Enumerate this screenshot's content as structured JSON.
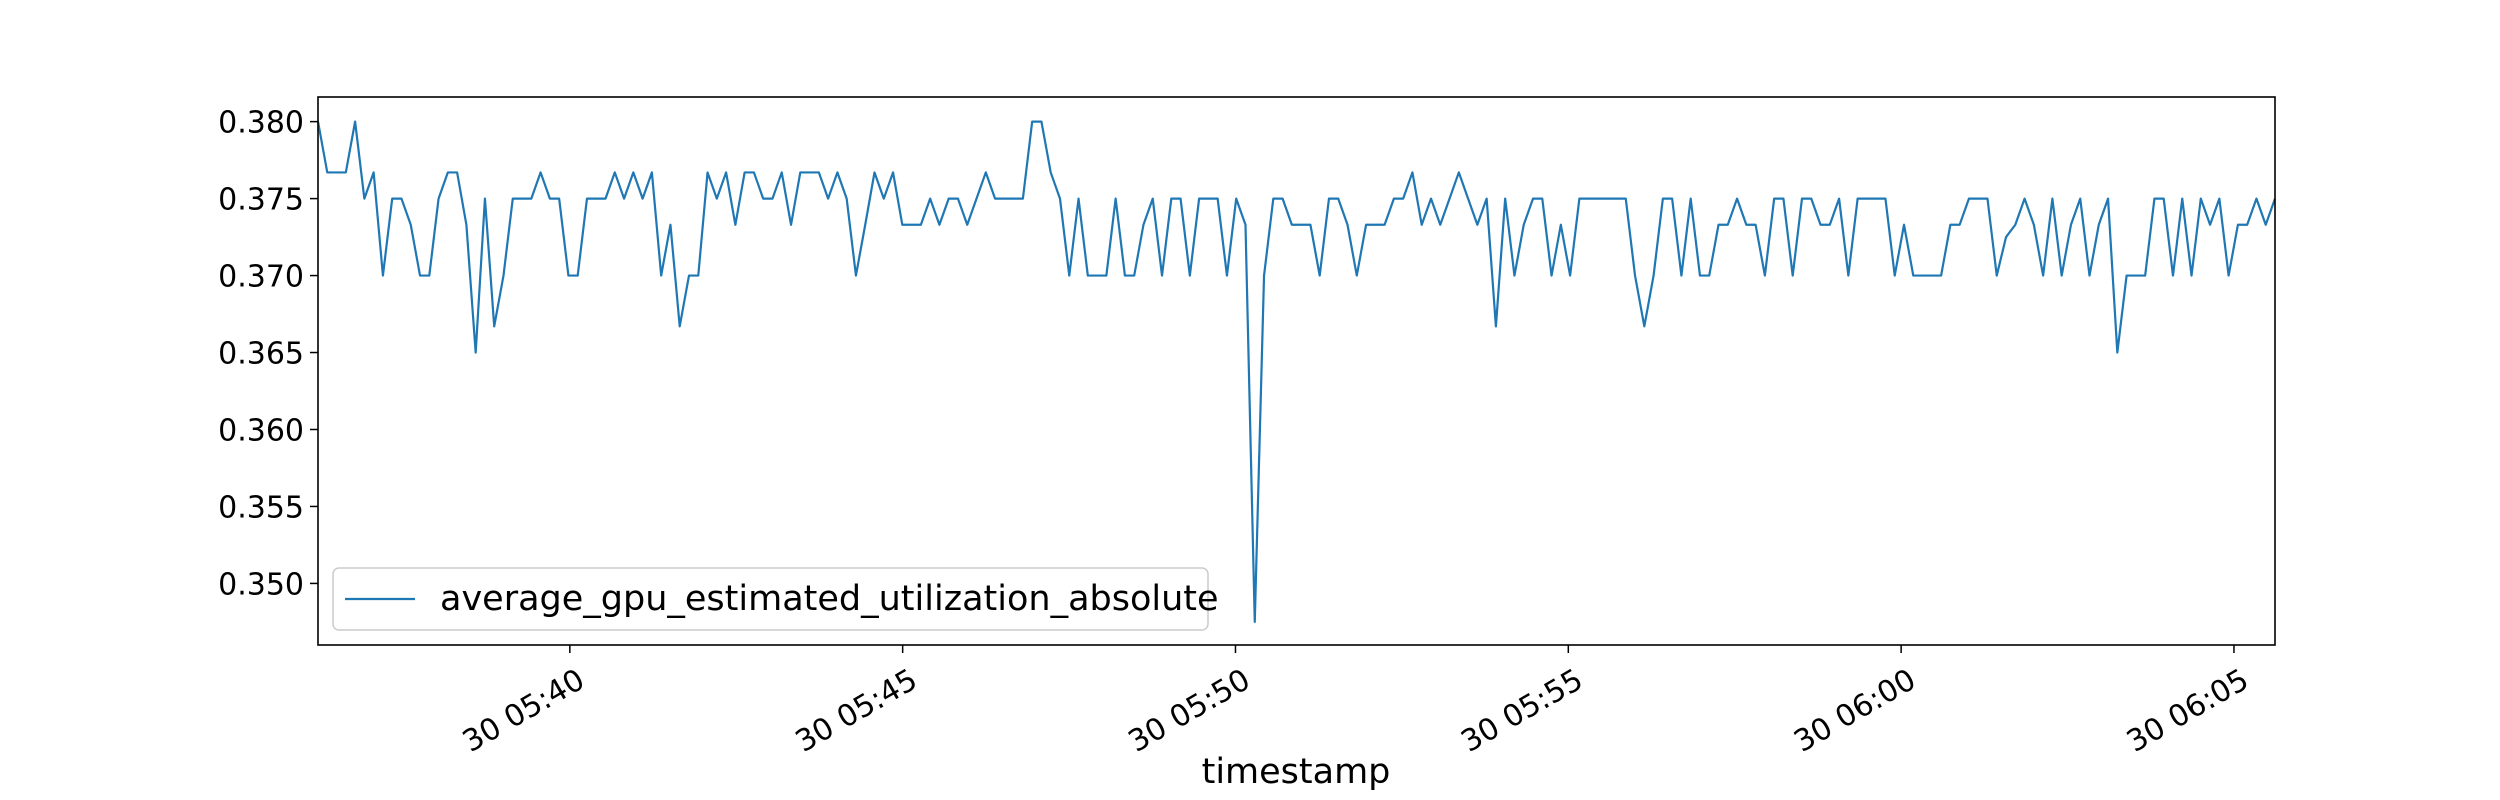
{
  "chart_data": {
    "type": "line",
    "title": "",
    "xlabel": "timestamp",
    "ylabel": "",
    "grid": false,
    "legend_position": "lower-left",
    "x_start": "30 05:36:13",
    "x_end": "30 06:05:37",
    "xlim": [
      "30 05:36:13",
      "30 06:05:37"
    ],
    "ylim": [
      0.346,
      0.3816
    ],
    "x_tick_labels": [
      "30 05:40",
      "30 05:45",
      "30 05:50",
      "30 05:55",
      "30 06:00",
      "30 06:05"
    ],
    "y_tick_labels": [
      "0.350",
      "0.355",
      "0.360",
      "0.365",
      "0.370",
      "0.375",
      "0.380"
    ],
    "x_sample_interval": "6 seconds",
    "series": [
      {
        "name": "average_gpu_estimated_utilization_absolute",
        "color": "#1f77b4",
        "values": [
          0.38,
          0.3767,
          0.3767,
          0.3767,
          0.38,
          0.375,
          0.3767,
          0.37,
          0.375,
          0.375,
          0.3733,
          0.37,
          0.37,
          0.375,
          0.3767,
          0.3767,
          0.3733,
          0.365,
          0.375,
          0.3667,
          0.37,
          0.375,
          0.375,
          0.375,
          0.3767,
          0.375,
          0.375,
          0.37,
          0.37,
          0.375,
          0.375,
          0.375,
          0.3767,
          0.375,
          0.3767,
          0.375,
          0.3767,
          0.37,
          0.3733,
          0.3667,
          0.37,
          0.37,
          0.3767,
          0.375,
          0.3767,
          0.3733,
          0.3767,
          0.3767,
          0.375,
          0.375,
          0.3767,
          0.3733,
          0.3767,
          0.3767,
          0.3767,
          0.375,
          0.3767,
          0.375,
          0.37,
          0.3733,
          0.3767,
          0.375,
          0.3767,
          0.3733,
          0.3733,
          0.3733,
          0.375,
          0.3733,
          0.375,
          0.375,
          0.3733,
          0.375,
          0.3767,
          0.375,
          0.375,
          0.375,
          0.375,
          0.38,
          0.38,
          0.3767,
          0.375,
          0.37,
          0.375,
          0.37,
          0.37,
          0.37,
          0.375,
          0.37,
          0.37,
          0.3733,
          0.375,
          0.37,
          0.375,
          0.375,
          0.37,
          0.375,
          0.375,
          0.375,
          0.37,
          0.375,
          0.3733,
          0.3475,
          0.37,
          0.375,
          0.375,
          0.3733,
          0.3733,
          0.3733,
          0.37,
          0.375,
          0.375,
          0.3733,
          0.37,
          0.3733,
          0.3733,
          0.3733,
          0.375,
          0.375,
          0.3767,
          0.3733,
          0.375,
          0.3733,
          0.375,
          0.3767,
          0.375,
          0.3733,
          0.375,
          0.3667,
          0.375,
          0.37,
          0.3733,
          0.375,
          0.375,
          0.37,
          0.3733,
          0.37,
          0.375,
          0.375,
          0.375,
          0.375,
          0.375,
          0.375,
          0.37,
          0.3667,
          0.37,
          0.375,
          0.375,
          0.37,
          0.375,
          0.37,
          0.37,
          0.3733,
          0.3733,
          0.375,
          0.3733,
          0.3733,
          0.37,
          0.375,
          0.375,
          0.37,
          0.375,
          0.375,
          0.3733,
          0.3733,
          0.375,
          0.37,
          0.375,
          0.375,
          0.375,
          0.375,
          0.37,
          0.3733,
          0.37,
          0.37,
          0.37,
          0.37,
          0.3733,
          0.3733,
          0.375,
          0.375,
          0.375,
          0.37,
          0.3725,
          0.3733,
          0.375,
          0.3733,
          0.37,
          0.375,
          0.37,
          0.3733,
          0.375,
          0.37,
          0.3733,
          0.375,
          0.365,
          0.37,
          0.37,
          0.37,
          0.375,
          0.375,
          0.37,
          0.375,
          0.37,
          0.375,
          0.3733,
          0.375,
          0.37,
          0.3733,
          0.3733,
          0.375,
          0.3733,
          0.375
        ]
      }
    ]
  }
}
